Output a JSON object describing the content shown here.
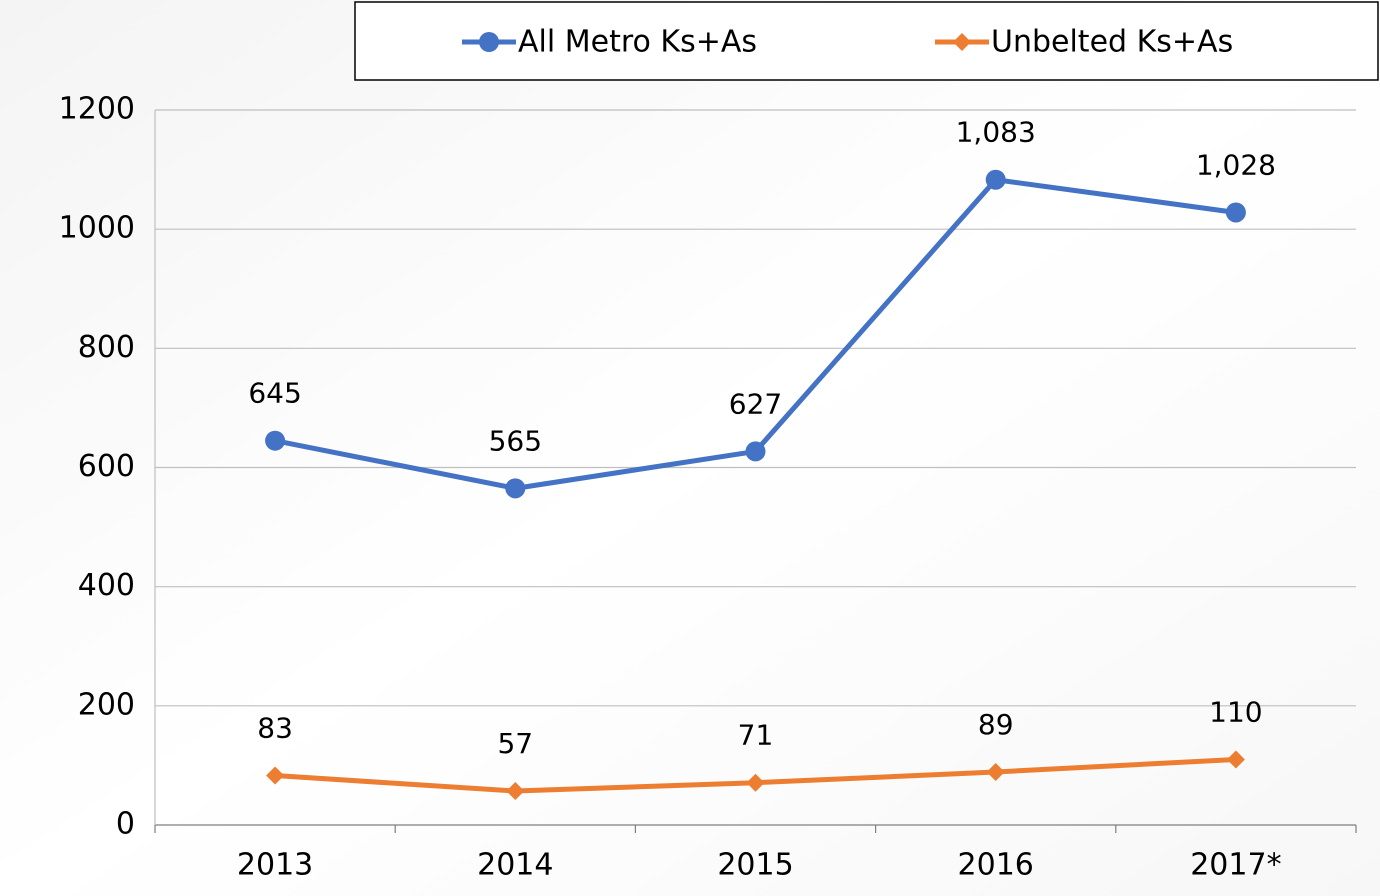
{
  "chart_data": {
    "type": "line",
    "categories": [
      "2013",
      "2014",
      "2015",
      "2016",
      "2017*"
    ],
    "series": [
      {
        "name": "All Metro Ks+As",
        "color": "#4472c4",
        "marker": "circle",
        "values": [
          645,
          565,
          627,
          1083,
          1028
        ],
        "value_labels": [
          "645",
          "565",
          "627",
          "1,083",
          "1,028"
        ]
      },
      {
        "name": "Unbelted Ks+As",
        "color": "#ed7d31",
        "marker": "diamond",
        "values": [
          83,
          57,
          71,
          89,
          110
        ]
      }
    ],
    "ylim": [
      0,
      1200
    ],
    "yticks": [
      0,
      200,
      400,
      600,
      800,
      1000,
      1200
    ],
    "grid": true,
    "legend": "top"
  }
}
